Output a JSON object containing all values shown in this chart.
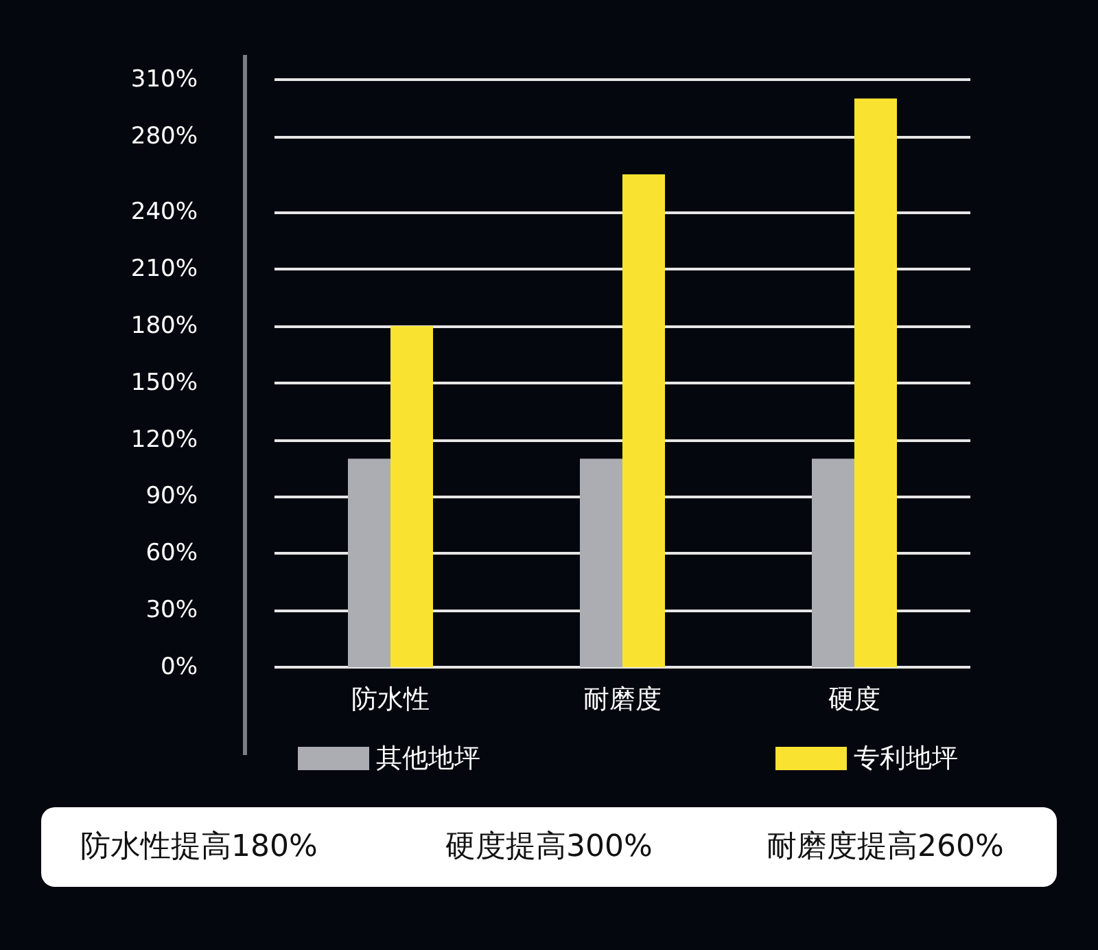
{
  "chart_data": {
    "type": "bar",
    "categories": [
      "防水性",
      "耐磨度",
      "硬度"
    ],
    "series": [
      {
        "name": "其他地坪",
        "color": "#abadb3",
        "values": [
          110,
          110,
          110
        ]
      },
      {
        "name": "专利地坪",
        "color": "#f9e330",
        "values": [
          180,
          260,
          300
        ]
      }
    ],
    "ylim": [
      0,
      310
    ],
    "yticks": [
      {
        "value": 0,
        "label": "0%"
      },
      {
        "value": 30,
        "label": "30%"
      },
      {
        "value": 60,
        "label": "60%"
      },
      {
        "value": 90,
        "label": "90%"
      },
      {
        "value": 120,
        "label": "120%"
      },
      {
        "value": 150,
        "label": "150%"
      },
      {
        "value": 180,
        "label": "180%"
      },
      {
        "value": 210,
        "label": "210%"
      },
      {
        "value": 240,
        "label": "240%"
      },
      {
        "value": 280,
        "label": "280%"
      },
      {
        "value": 310,
        "label": "310%"
      }
    ],
    "grid": "y",
    "legend": "bottom",
    "annotations": [
      "防水性提高180%",
      "硬度提高300%",
      "耐磨度提高260%"
    ]
  }
}
